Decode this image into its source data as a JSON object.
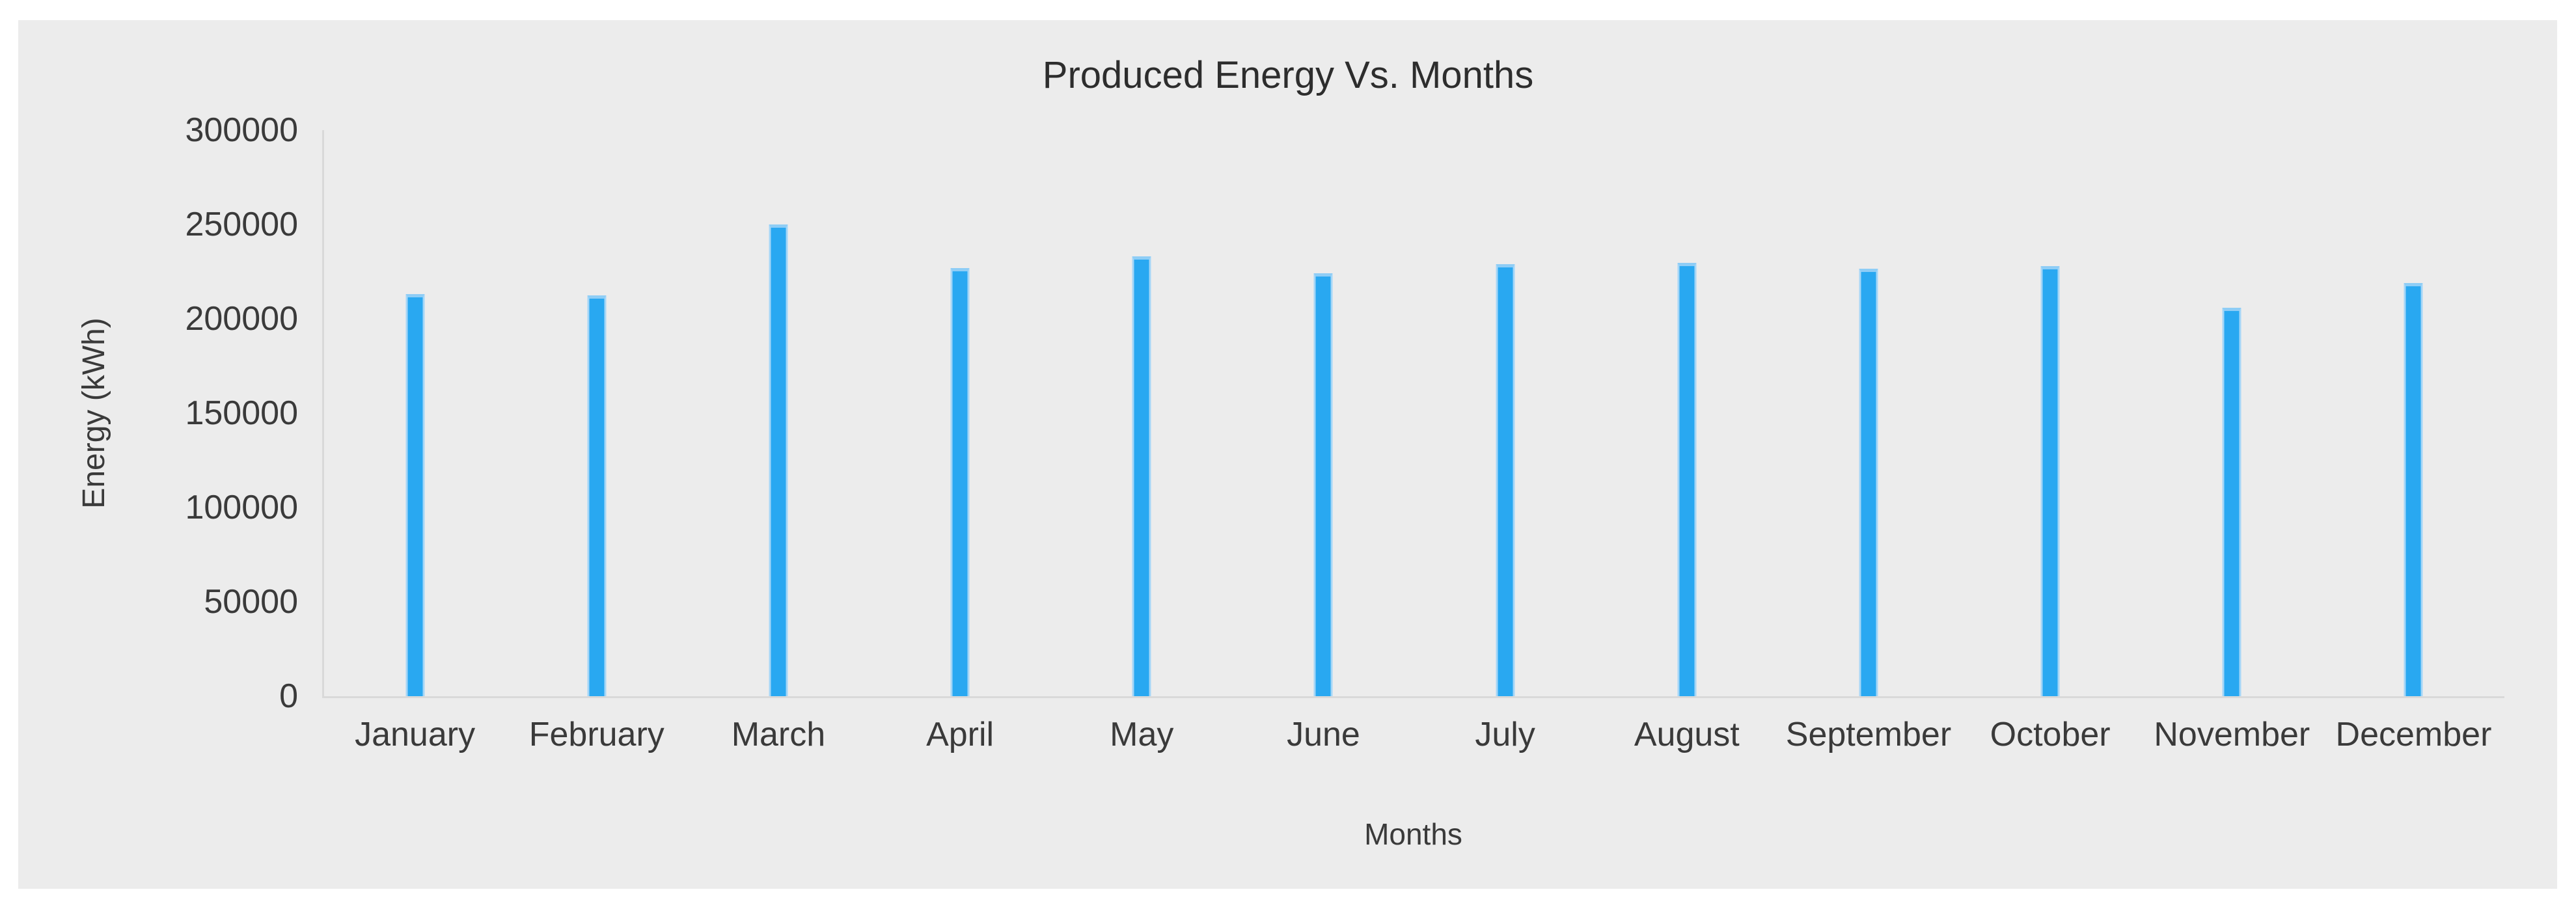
{
  "chart_data": {
    "type": "bar",
    "title": "Produced Energy Vs. Months",
    "xlabel": "Months",
    "ylabel": "Energy (kWh)",
    "categories": [
      "January",
      "February",
      "March",
      "April",
      "May",
      "June",
      "July",
      "August",
      "September",
      "October",
      "November",
      "December"
    ],
    "values": [
      213000,
      212500,
      250000,
      227000,
      233000,
      224000,
      229000,
      229500,
      226500,
      228000,
      206000,
      219000
    ],
    "ylim": [
      0,
      300000
    ],
    "yticks": [
      0,
      50000,
      100000,
      150000,
      200000,
      250000,
      300000
    ],
    "grid": false,
    "legend": "none"
  },
  "colors": {
    "page_bg": "#ffffff",
    "panel_bg": "#ececec",
    "axis_line": "#d9d9d9",
    "bar": "#29a8f1",
    "bar_edge": "#a5d6f7",
    "bar_cap": "#8ecdf6",
    "text": "#3a3a3a",
    "title_text": "#2d2d2d"
  }
}
